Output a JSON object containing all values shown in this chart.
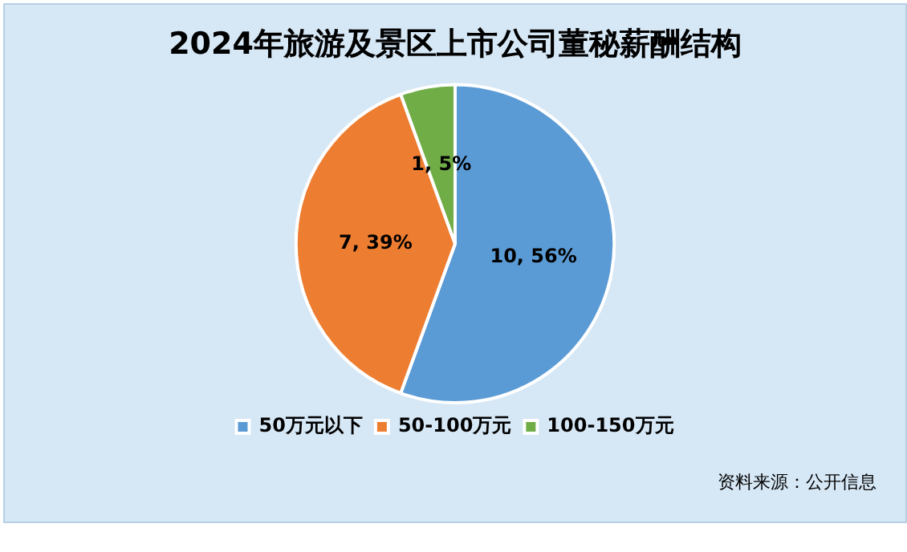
{
  "chart_data": {
    "type": "pie",
    "title": "2024年旅游及景区上市公司董秘薪酬结构",
    "categories": [
      "50万元以下",
      "50-100万元",
      "100-150万元"
    ],
    "values": [
      10,
      7,
      1
    ],
    "colors": [
      "#5b9bd5",
      "#ed7d31",
      "#70ad47"
    ],
    "value_labels": [
      "10, 56%",
      "7, 39%",
      "1, 5%"
    ],
    "legend": "bottom",
    "annotations": [
      "资料来源：公开信息"
    ]
  }
}
